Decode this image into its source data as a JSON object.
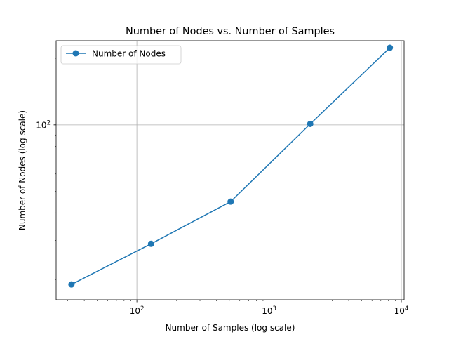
{
  "chart_data": {
    "type": "line",
    "title": "Number of Nodes vs. Number of Samples",
    "xlabel": "Number of Samples (log scale)",
    "ylabel": "Number of Nodes (log scale)",
    "x_scale": "log",
    "y_scale": "log",
    "xlim": [
      24.5,
      10500
    ],
    "ylim": [
      16.2,
      240
    ],
    "x_ticks": [
      {
        "value": 100,
        "base": "10",
        "exp": "2"
      },
      {
        "value": 1000,
        "base": "10",
        "exp": "3"
      },
      {
        "value": 10000,
        "base": "10",
        "exp": "4"
      }
    ],
    "y_ticks": [
      {
        "value": 100,
        "base": "10",
        "exp": "2"
      }
    ],
    "grid": true,
    "legend_position": "top-left",
    "series": [
      {
        "name": "Number of Nodes",
        "color": "#1f77b4",
        "marker": "circle",
        "x": [
          32,
          128,
          512,
          2048,
          8192
        ],
        "y": [
          19,
          29,
          45,
          101,
          223
        ]
      }
    ]
  }
}
